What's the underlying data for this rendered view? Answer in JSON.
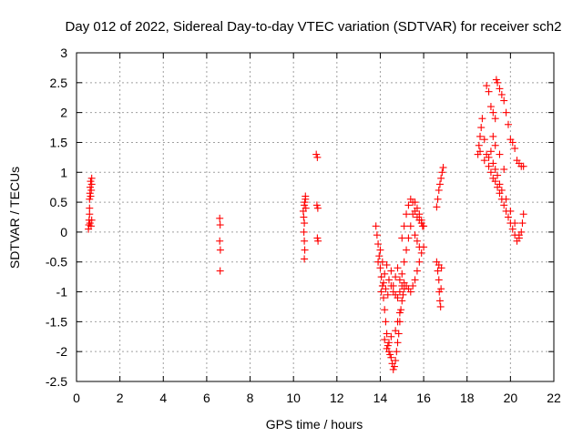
{
  "chart_data": {
    "type": "scatter",
    "title": "Day 012 of 2022, Sidereal Day-to-day VTEC variation (SDTVAR) for receiver sch2",
    "xlabel": "GPS time / hours",
    "ylabel": "SDTVAR / TECUs",
    "xlim": [
      0,
      22
    ],
    "ylim": [
      -2.5,
      3
    ],
    "xticks": [
      0,
      2,
      4,
      6,
      8,
      10,
      12,
      14,
      16,
      18,
      20,
      22
    ],
    "yticks": [
      -2.5,
      -2,
      -1.5,
      -1,
      -0.5,
      0,
      0.5,
      1,
      1.5,
      2,
      2.5,
      3
    ],
    "grid": true,
    "marker": "+",
    "color": "#ff0000",
    "series": [
      {
        "name": "SDTVAR",
        "points": [
          [
            0.55,
            0.05
          ],
          [
            0.57,
            0.12
          ],
          [
            0.58,
            0.2
          ],
          [
            0.6,
            0.3
          ],
          [
            0.62,
            0.15
          ],
          [
            0.6,
            0.4
          ],
          [
            0.6,
            0.55
          ],
          [
            0.62,
            0.65
          ],
          [
            0.63,
            0.75
          ],
          [
            0.65,
            0.6
          ],
          [
            0.65,
            0.85
          ],
          [
            0.68,
            0.7
          ],
          [
            0.7,
            0.9
          ],
          [
            0.7,
            0.8
          ],
          [
            0.67,
            0.1
          ],
          [
            0.7,
            0.2
          ],
          [
            6.6,
            0.23
          ],
          [
            6.62,
            0.12
          ],
          [
            6.6,
            -0.15
          ],
          [
            6.63,
            -0.3
          ],
          [
            6.62,
            -0.65
          ],
          [
            10.45,
            0.35
          ],
          [
            10.5,
            0.45
          ],
          [
            10.52,
            0.5
          ],
          [
            10.55,
            0.6
          ],
          [
            10.47,
            0.25
          ],
          [
            10.5,
            0.15
          ],
          [
            10.48,
            0.0
          ],
          [
            10.5,
            -0.15
          ],
          [
            10.52,
            -0.3
          ],
          [
            10.5,
            -0.45
          ],
          [
            10.55,
            0.55
          ],
          [
            10.57,
            0.4
          ],
          [
            11.05,
            1.3
          ],
          [
            11.1,
            1.25
          ],
          [
            11.08,
            0.45
          ],
          [
            11.12,
            0.4
          ],
          [
            11.1,
            -0.1
          ],
          [
            11.13,
            -0.15
          ],
          [
            13.8,
            0.1
          ],
          [
            13.85,
            -0.05
          ],
          [
            13.9,
            -0.2
          ],
          [
            13.95,
            -0.4
          ],
          [
            14.0,
            -0.6
          ],
          [
            14.05,
            -0.75
          ],
          [
            14.1,
            -0.9
          ],
          [
            14.15,
            -1.1
          ],
          [
            14.2,
            -1.3
          ],
          [
            14.25,
            -1.5
          ],
          [
            14.3,
            -1.7
          ],
          [
            14.35,
            -1.9
          ],
          [
            14.4,
            -2.0
          ],
          [
            14.45,
            -2.05
          ],
          [
            14.5,
            -2.1
          ],
          [
            14.55,
            -2.2
          ],
          [
            14.6,
            -2.3
          ],
          [
            14.65,
            -2.25
          ],
          [
            14.7,
            -2.15
          ],
          [
            14.75,
            -2.0
          ],
          [
            14.8,
            -1.85
          ],
          [
            14.85,
            -1.7
          ],
          [
            14.9,
            -1.5
          ],
          [
            14.95,
            -1.3
          ],
          [
            15.0,
            -1.15
          ],
          [
            15.05,
            -1.05
          ],
          [
            15.1,
            -0.95
          ],
          [
            13.9,
            -0.5
          ],
          [
            14.0,
            -0.3
          ],
          [
            14.1,
            -0.5
          ],
          [
            14.2,
            -0.7
          ],
          [
            14.3,
            -0.55
          ],
          [
            14.4,
            -0.8
          ],
          [
            14.5,
            -0.65
          ],
          [
            14.6,
            -0.9
          ],
          [
            14.7,
            -0.75
          ],
          [
            14.8,
            -0.6
          ],
          [
            14.9,
            -0.8
          ],
          [
            15.0,
            -0.7
          ],
          [
            15.1,
            -0.5
          ],
          [
            15.2,
            -0.3
          ],
          [
            15.3,
            -0.1
          ],
          [
            15.4,
            0.1
          ],
          [
            15.5,
            0.3
          ],
          [
            15.6,
            0.5
          ],
          [
            15.7,
            0.4
          ],
          [
            15.8,
            0.2
          ],
          [
            15.9,
            0.15
          ],
          [
            16.0,
            0.1
          ],
          [
            14.05,
            -1.0
          ],
          [
            14.15,
            -0.85
          ],
          [
            14.25,
            -0.95
          ],
          [
            14.35,
            -1.05
          ],
          [
            14.5,
            -0.9
          ],
          [
            14.6,
            -1.0
          ],
          [
            14.7,
            -1.05
          ],
          [
            14.8,
            -1.1
          ],
          [
            14.9,
            -1.0
          ],
          [
            15.0,
            -0.9
          ],
          [
            15.1,
            -0.85
          ],
          [
            15.2,
            -0.9
          ],
          [
            15.3,
            -0.95
          ],
          [
            15.4,
            -1.0
          ],
          [
            15.5,
            -0.9
          ],
          [
            15.6,
            -0.8
          ],
          [
            15.7,
            -0.65
          ],
          [
            15.8,
            -0.5
          ],
          [
            15.9,
            -0.35
          ],
          [
            16.0,
            -0.25
          ],
          [
            15.2,
            0.3
          ],
          [
            15.3,
            0.45
          ],
          [
            15.4,
            0.55
          ],
          [
            15.5,
            0.5
          ],
          [
            15.6,
            0.35
          ],
          [
            15.7,
            0.25
          ],
          [
            15.8,
            0.3
          ],
          [
            15.9,
            0.2
          ],
          [
            15.95,
            0.1
          ],
          [
            15.1,
            0.1
          ],
          [
            15.0,
            -0.1
          ],
          [
            15.6,
            -0.05
          ],
          [
            15.7,
            -0.15
          ],
          [
            15.8,
            -0.25
          ],
          [
            14.2,
            -1.8
          ],
          [
            14.3,
            -1.95
          ],
          [
            14.4,
            -1.85
          ],
          [
            14.5,
            -1.75
          ],
          [
            14.7,
            -1.65
          ],
          [
            14.8,
            -1.5
          ],
          [
            14.9,
            -1.35
          ],
          [
            16.6,
            -0.5
          ],
          [
            16.65,
            -0.65
          ],
          [
            16.7,
            -0.8
          ],
          [
            16.72,
            -1.0
          ],
          [
            16.75,
            -1.15
          ],
          [
            16.78,
            -1.25
          ],
          [
            16.8,
            -0.95
          ],
          [
            16.82,
            -0.6
          ],
          [
            16.6,
            0.42
          ],
          [
            16.65,
            0.55
          ],
          [
            16.7,
            0.7
          ],
          [
            16.75,
            0.8
          ],
          [
            16.8,
            0.9
          ],
          [
            16.85,
            1.0
          ],
          [
            16.9,
            1.08
          ],
          [
            16.7,
            -0.55
          ],
          [
            18.5,
            1.3
          ],
          [
            18.55,
            1.45
          ],
          [
            18.6,
            1.6
          ],
          [
            18.65,
            1.75
          ],
          [
            18.7,
            1.9
          ],
          [
            18.8,
            1.55
          ],
          [
            18.9,
            1.3
          ],
          [
            19.0,
            1.1
          ],
          [
            19.1,
            1.0
          ],
          [
            19.2,
            0.9
          ],
          [
            19.3,
            0.85
          ],
          [
            19.4,
            0.75
          ],
          [
            19.5,
            0.65
          ],
          [
            19.6,
            0.55
          ],
          [
            19.7,
            0.45
          ],
          [
            19.8,
            0.35
          ],
          [
            19.9,
            0.25
          ],
          [
            20.0,
            0.15
          ],
          [
            20.1,
            0.05
          ],
          [
            20.2,
            -0.05
          ],
          [
            20.3,
            -0.15
          ],
          [
            20.4,
            -0.1
          ],
          [
            20.5,
            0.0
          ],
          [
            20.55,
            0.15
          ],
          [
            20.6,
            0.3
          ],
          [
            18.9,
            2.45
          ],
          [
            19.0,
            2.35
          ],
          [
            19.1,
            2.1
          ],
          [
            19.2,
            2.0
          ],
          [
            19.3,
            1.9
          ],
          [
            19.35,
            2.55
          ],
          [
            19.4,
            2.5
          ],
          [
            19.5,
            2.4
          ],
          [
            19.6,
            2.3
          ],
          [
            19.7,
            2.2
          ],
          [
            19.8,
            2.0
          ],
          [
            19.9,
            1.8
          ],
          [
            20.0,
            1.55
          ],
          [
            20.1,
            1.5
          ],
          [
            20.2,
            1.4
          ],
          [
            20.3,
            1.2
          ],
          [
            20.4,
            1.15
          ],
          [
            20.5,
            1.1
          ],
          [
            20.6,
            1.1
          ],
          [
            18.6,
            1.35
          ],
          [
            18.8,
            1.2
          ],
          [
            19.0,
            1.25
          ],
          [
            19.2,
            1.15
          ],
          [
            19.3,
            1.05
          ],
          [
            19.4,
            0.95
          ],
          [
            19.5,
            0.8
          ],
          [
            19.6,
            0.7
          ],
          [
            19.8,
            0.55
          ],
          [
            20.0,
            0.35
          ],
          [
            20.2,
            0.15
          ],
          [
            20.4,
            -0.05
          ],
          [
            19.1,
            1.35
          ],
          [
            19.2,
            1.6
          ],
          [
            19.3,
            1.45
          ],
          [
            19.5,
            1.3
          ],
          [
            19.7,
            1.05
          ]
        ]
      }
    ]
  }
}
